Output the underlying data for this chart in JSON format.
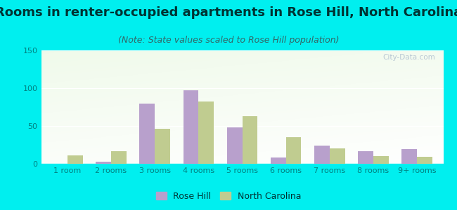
{
  "title": "Rooms in renter-occupied apartments in Rose Hill, North Carolina",
  "subtitle": "(Note: State values scaled to Rose Hill population)",
  "categories": [
    "1 room",
    "2 rooms",
    "3 rooms",
    "4 rooms",
    "5 rooms",
    "6 rooms",
    "7 rooms",
    "8 rooms",
    "9+ rooms"
  ],
  "rose_hill": [
    0,
    3,
    80,
    97,
    48,
    8,
    24,
    17,
    19
  ],
  "north_carolina": [
    11,
    17,
    46,
    82,
    63,
    35,
    20,
    10,
    9
  ],
  "rose_hill_color": "#b8a0cc",
  "nc_color": "#c0cc90",
  "background_outer": "#00efef",
  "ylim": [
    0,
    150
  ],
  "yticks": [
    0,
    50,
    100,
    150
  ],
  "title_fontsize": 13,
  "subtitle_fontsize": 9,
  "tick_fontsize": 8,
  "legend_fontsize": 9,
  "watermark_text": "City-Data.com"
}
